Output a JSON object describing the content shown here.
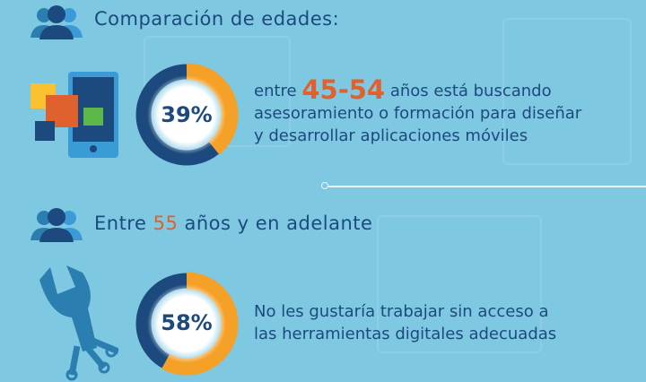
{
  "colors": {
    "background": "#7ec8e2",
    "dark_blue": "#1d4a7e",
    "orange": "#f5a027",
    "accent": "#e0612d"
  },
  "section1": {
    "title": "Comparación de edades:",
    "icon": "people-group-icon",
    "stat_icon": "mobile-apps-icon",
    "percent_label": "39%",
    "percent_value": 39,
    "text_prefix": "entre ",
    "text_highlight": "45-54",
    "text_line1_suffix": " años está buscando",
    "text_line2": "asesoramiento o formación para diseñar",
    "text_line3": "y desarrollar aplicaciones móviles"
  },
  "section2": {
    "title_prefix": "Entre ",
    "title_highlight": "55",
    "title_suffix": " años y en adelante",
    "icon": "people-group-icon",
    "stat_icon": "wrench-circuit-icon",
    "percent_label": "58%",
    "percent_value": 58,
    "text_line1": "No les gustaría trabajar sin acceso a",
    "text_line2": "las herramientas digitales adecuadas"
  }
}
